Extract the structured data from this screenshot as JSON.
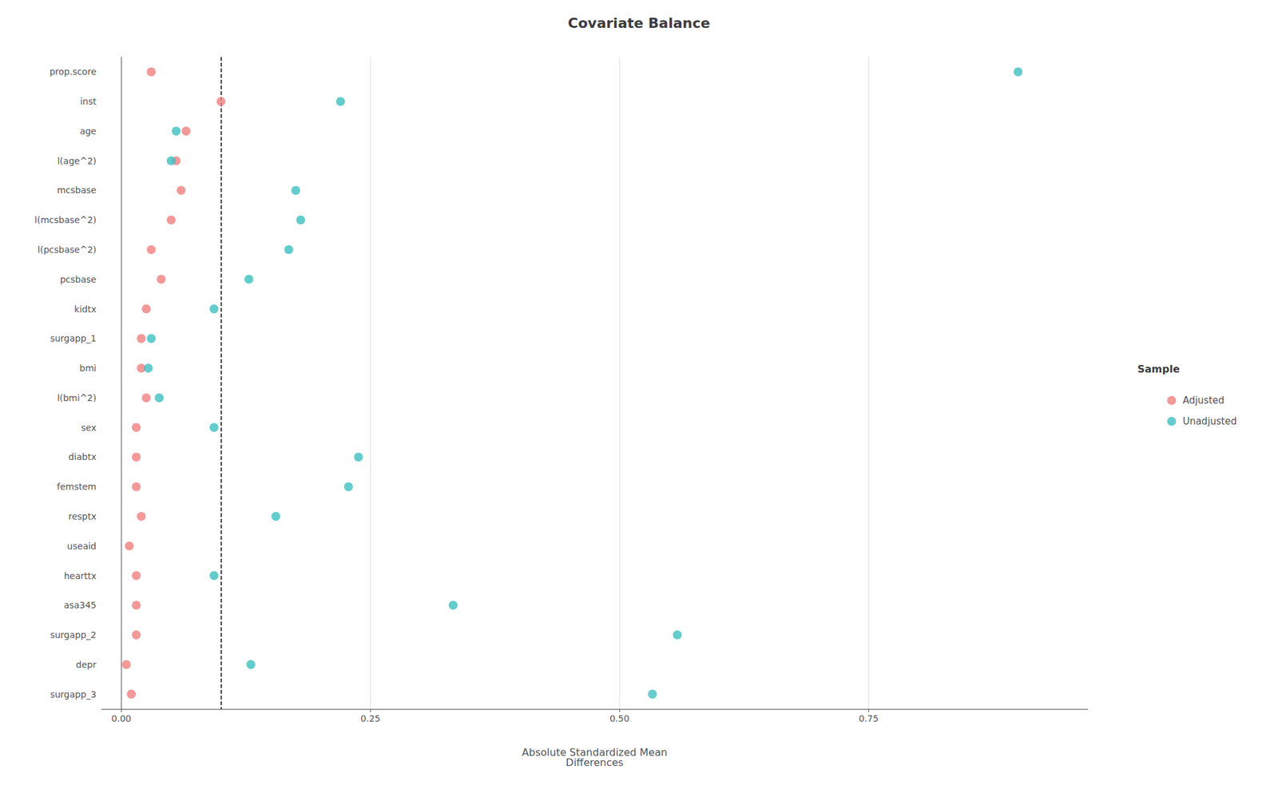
{
  "chart_data": {
    "type": "scatter",
    "title": "Covariate Balance",
    "xlabel": "Absolute Standardized Mean\nDifferences",
    "categories": [
      "prop.score",
      "inst",
      "age",
      "l(age^2)",
      "mcsbase",
      "l(mcsbase^2)",
      "l(pcsbase^2)",
      "pcsbase",
      "kidtx",
      "surgapp_1",
      "bmi",
      "l(bmi^2)",
      "sex",
      "diabtx",
      "femstem",
      "resptx",
      "useaid",
      "hearttx",
      "asa345",
      "surgapp_2",
      "depr",
      "surgapp_3"
    ],
    "series": [
      {
        "name": "Adjusted",
        "color": "#F08080",
        "marker": "circle",
        "values": [
          0.03,
          0.1,
          0.065,
          0.055,
          0.06,
          0.05,
          0.03,
          0.04,
          0.025,
          0.02,
          0.02,
          0.025,
          0.015,
          0.015,
          0.015,
          0.02,
          0.008,
          0.015,
          0.015,
          0.015,
          0.005,
          0.01
        ]
      },
      {
        "name": "Unadjusted",
        "color": "#3DBFBF",
        "marker": "circle",
        "values": [
          0.9,
          0.22,
          0.055,
          0.05,
          0.175,
          0.18,
          0.168,
          0.128,
          0.093,
          0.03,
          0.027,
          0.038,
          0.093,
          0.238,
          0.228,
          0.155,
          null,
          0.093,
          0.333,
          0.558,
          0.13,
          0.533
        ]
      }
    ],
    "xlim": [
      -0.02,
      0.97
    ],
    "xticks": [
      {
        "value": 0,
        "label": "0.00"
      },
      {
        "value": 0.25,
        "label": "0.25"
      },
      {
        "value": 0.5,
        "label": "0.50"
      },
      {
        "value": 0.75,
        "label": "0.75"
      }
    ],
    "reference_lines": [
      {
        "x": 0.1,
        "line_style": "dashed"
      }
    ],
    "grid": true,
    "legend": "right",
    "legend_title": "Sample"
  }
}
